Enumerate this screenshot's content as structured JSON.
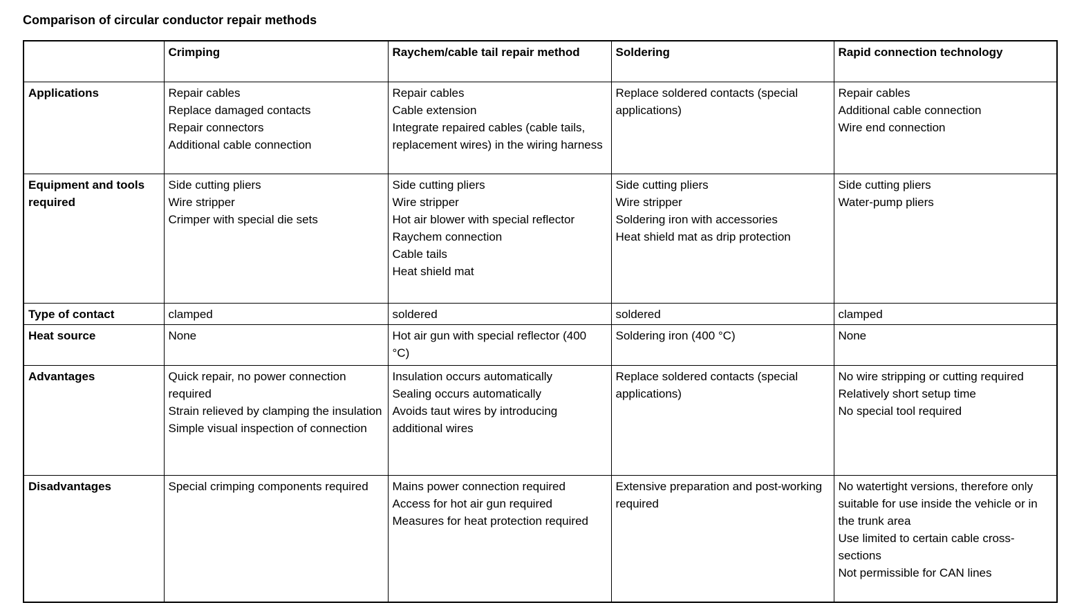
{
  "title": "Comparison of circular conductor repair methods",
  "table": {
    "header": [
      "",
      "Crimping",
      "Raychem/cable tail repair method",
      "Soldering",
      "Rapid connection technology"
    ],
    "rows": [
      {
        "label": "Applications",
        "cells": [
          [
            "Repair cables",
            "Replace damaged contacts",
            "Repair connectors",
            "Additional cable connection"
          ],
          [
            "Repair cables",
            "Cable extension",
            "Integrate repaired cables (cable tails, replacement wires) in the wiring harness"
          ],
          [
            "Replace soldered contacts (special applications)"
          ],
          [
            "Repair cables",
            "Additional cable connection",
            "Wire end connection"
          ]
        ]
      },
      {
        "label": "Equipment and tools required",
        "cells": [
          [
            "Side cutting pliers",
            "Wire stripper",
            "Crimper with special die sets"
          ],
          [
            "Side cutting pliers",
            "Wire stripper",
            "Hot air blower with special reflector",
            "Raychem connection",
            "Cable tails",
            "Heat shield mat"
          ],
          [
            "Side cutting pliers",
            "Wire stripper",
            "Soldering iron with accessories",
            "Heat shield mat as drip protection"
          ],
          [
            "Side cutting pliers",
            "Water-pump pliers"
          ]
        ]
      },
      {
        "label": "Type of contact",
        "cells": [
          [
            "clamped"
          ],
          [
            "soldered"
          ],
          [
            "soldered"
          ],
          [
            "clamped"
          ]
        ]
      },
      {
        "label": "Heat source",
        "cells": [
          [
            "None"
          ],
          [
            "Hot air gun with special reflector (400 °C)"
          ],
          [
            "Soldering iron (400 °C)"
          ],
          [
            "None"
          ]
        ]
      },
      {
        "label": "Advantages",
        "cells": [
          [
            "Quick repair, no power connection required",
            "Strain relieved by clamping the insulation",
            "Simple visual inspection of connection"
          ],
          [
            "Insulation occurs automatically",
            "Sealing occurs automatically",
            "Avoids taut wires by introducing additional wires"
          ],
          [
            "Replace soldered contacts (special applications)"
          ],
          [
            "No wire stripping or cutting required",
            "Relatively short setup time",
            "No special tool required"
          ]
        ]
      },
      {
        "label": "Disadvantages",
        "cells": [
          [
            "Special crimping components required"
          ],
          [
            "Mains power connection required",
            "Access for hot air gun required",
            "Measures for heat protection required"
          ],
          [
            "Extensive preparation and post-working required"
          ],
          [
            "No watertight versions, therefore only suitable for use inside the vehicle or in the trunk area",
            "Use limited to certain cable cross-sections",
            "Not permissible for CAN lines"
          ]
        ]
      }
    ]
  }
}
